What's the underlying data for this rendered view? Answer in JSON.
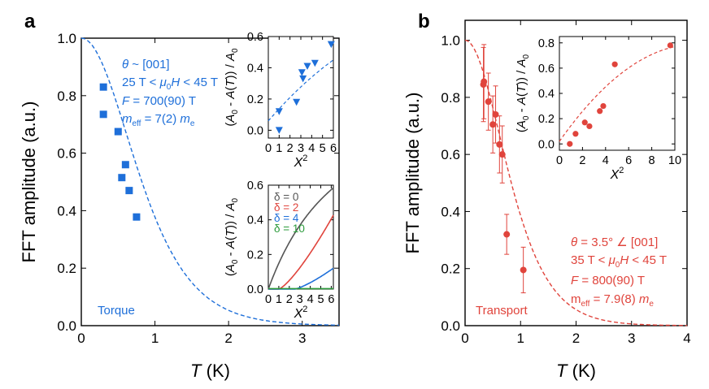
{
  "colors": {
    "panel_a": "#1e6fd9",
    "panel_b": "#e0443c",
    "axis": "#000000",
    "inset_d0": "#555555",
    "inset_d2": "#e0443c",
    "inset_d4": "#1e6fd9",
    "inset_d10": "#2a9a3a"
  },
  "chart_data": [
    {
      "id": "a-main",
      "panel_label": "a",
      "type": "scatter",
      "xlabel_italic": "T",
      "xlabel_rest": " (K)",
      "ylabel": "FFT amplitude (a.u.)",
      "xlim": [
        0,
        3.5
      ],
      "ylim": [
        0,
        1.0
      ],
      "xticks": [
        0,
        1,
        2,
        3
      ],
      "yticks": [
        0.0,
        0.2,
        0.4,
        0.6,
        0.8,
        1.0
      ],
      "ytick_labels": [
        "0.0",
        "0.2",
        "0.4",
        "0.6",
        "0.8",
        "1.0"
      ],
      "series": [
        {
          "marker": "square",
          "x": [
            0.3,
            0.3,
            0.5,
            0.55,
            0.6,
            0.65,
            0.75
          ],
          "y": [
            0.83,
            0.735,
            0.675,
            0.515,
            0.56,
            0.47,
            0.378
          ]
        }
      ],
      "fit": {
        "style": "dashed",
        "F_T": 700,
        "meff": 7.0
      },
      "annotation_lines": [
        "θ ~ [001]",
        "25 T < μ0H < 45 T",
        "F = 700(90) T",
        "meff = 7(2) me"
      ],
      "tag": "Torque"
    },
    {
      "id": "a-inset-top",
      "type": "scatter",
      "xlabel": "X²",
      "ylabel": "(A0 - A(T)) / A0",
      "xlim": [
        0,
        6
      ],
      "ylim": [
        -0.05,
        0.6
      ],
      "xticks": [
        0,
        1,
        2,
        3,
        4,
        5,
        6
      ],
      "yticks": [
        0.0,
        0.2,
        0.4,
        0.6
      ],
      "ytick_labels": [
        "0.0",
        "0.2",
        "0.4",
        "0.6"
      ],
      "series": [
        {
          "marker": "triangle-down",
          "x": [
            1.0,
            1.0,
            2.6,
            3.1,
            3.2,
            3.6,
            4.3,
            5.8
          ],
          "y": [
            0.0,
            0.12,
            0.18,
            0.37,
            0.33,
            0.41,
            0.43,
            0.55
          ]
        }
      ]
    },
    {
      "id": "a-inset-bottom",
      "type": "line",
      "xlabel": "X²",
      "ylabel": "(A0 - A(T)) / A0",
      "xlim": [
        0,
        6.2
      ],
      "ylim": [
        0,
        0.6
      ],
      "xticks": [
        0,
        1,
        2,
        3,
        4,
        5,
        6
      ],
      "yticks": [
        0.0,
        0.2,
        0.4,
        0.6
      ],
      "ytick_labels": [
        "0.0",
        "0.2",
        "0.4",
        "0.6"
      ],
      "series": [
        {
          "name": "δ = 0",
          "delta": 0
        },
        {
          "name": "δ = 2",
          "delta": 2
        },
        {
          "name": "δ = 4",
          "delta": 4
        },
        {
          "name": "δ = 10",
          "delta": 10
        }
      ]
    },
    {
      "id": "b-main",
      "panel_label": "b",
      "type": "scatter",
      "xlabel_italic": "T",
      "xlabel_rest": " (K)",
      "ylabel": "FFT amplitude (a.u.)",
      "xlim": [
        0,
        4
      ],
      "ylim": [
        0,
        1.07
      ],
      "xticks": [
        0,
        1,
        2,
        3,
        4
      ],
      "yticks": [
        0.0,
        0.2,
        0.4,
        0.6,
        0.8,
        1.0
      ],
      "ytick_labels": [
        "0.0",
        "0.2",
        "0.4",
        "0.6",
        "0.8",
        "1.0"
      ],
      "series": [
        {
          "marker": "circle",
          "x": [
            0.33,
            0.34,
            0.42,
            0.5,
            0.55,
            0.62,
            0.67,
            0.75,
            1.05
          ],
          "y": [
            0.845,
            0.855,
            0.785,
            0.705,
            0.74,
            0.635,
            0.6,
            0.32,
            0.195
          ],
          "err": [
            0.13,
            0.13,
            0.1,
            0.1,
            0.1,
            0.1,
            0.1,
            0.07,
            0.08
          ]
        }
      ],
      "fit": {
        "style": "dashed",
        "F_T": 800,
        "meff": 7.9
      },
      "annotation_lines": [
        "θ = 3.5° ∠ [001]",
        "35 T < μ0H < 45 T",
        "F = 800(90) T",
        "meff = 7.9(8) me"
      ],
      "tag": "Transport"
    },
    {
      "id": "b-inset",
      "type": "scatter",
      "xlabel": "X²",
      "ylabel": "(A0 - A(T)) / A0",
      "xlim": [
        0,
        10
      ],
      "ylim": [
        -0.05,
        0.85
      ],
      "xticks": [
        0,
        2,
        4,
        6,
        8,
        10
      ],
      "yticks": [
        0.0,
        0.2,
        0.4,
        0.6,
        0.8
      ],
      "ytick_labels": [
        "0.0",
        "0.2",
        "0.4",
        "0.6",
        "0.8"
      ],
      "series": [
        {
          "marker": "circle",
          "x": [
            0.9,
            1.4,
            2.2,
            2.6,
            3.5,
            3.8,
            4.8,
            9.6
          ],
          "y": [
            0.0,
            0.08,
            0.17,
            0.14,
            0.26,
            0.3,
            0.63,
            0.78
          ]
        }
      ]
    }
  ]
}
